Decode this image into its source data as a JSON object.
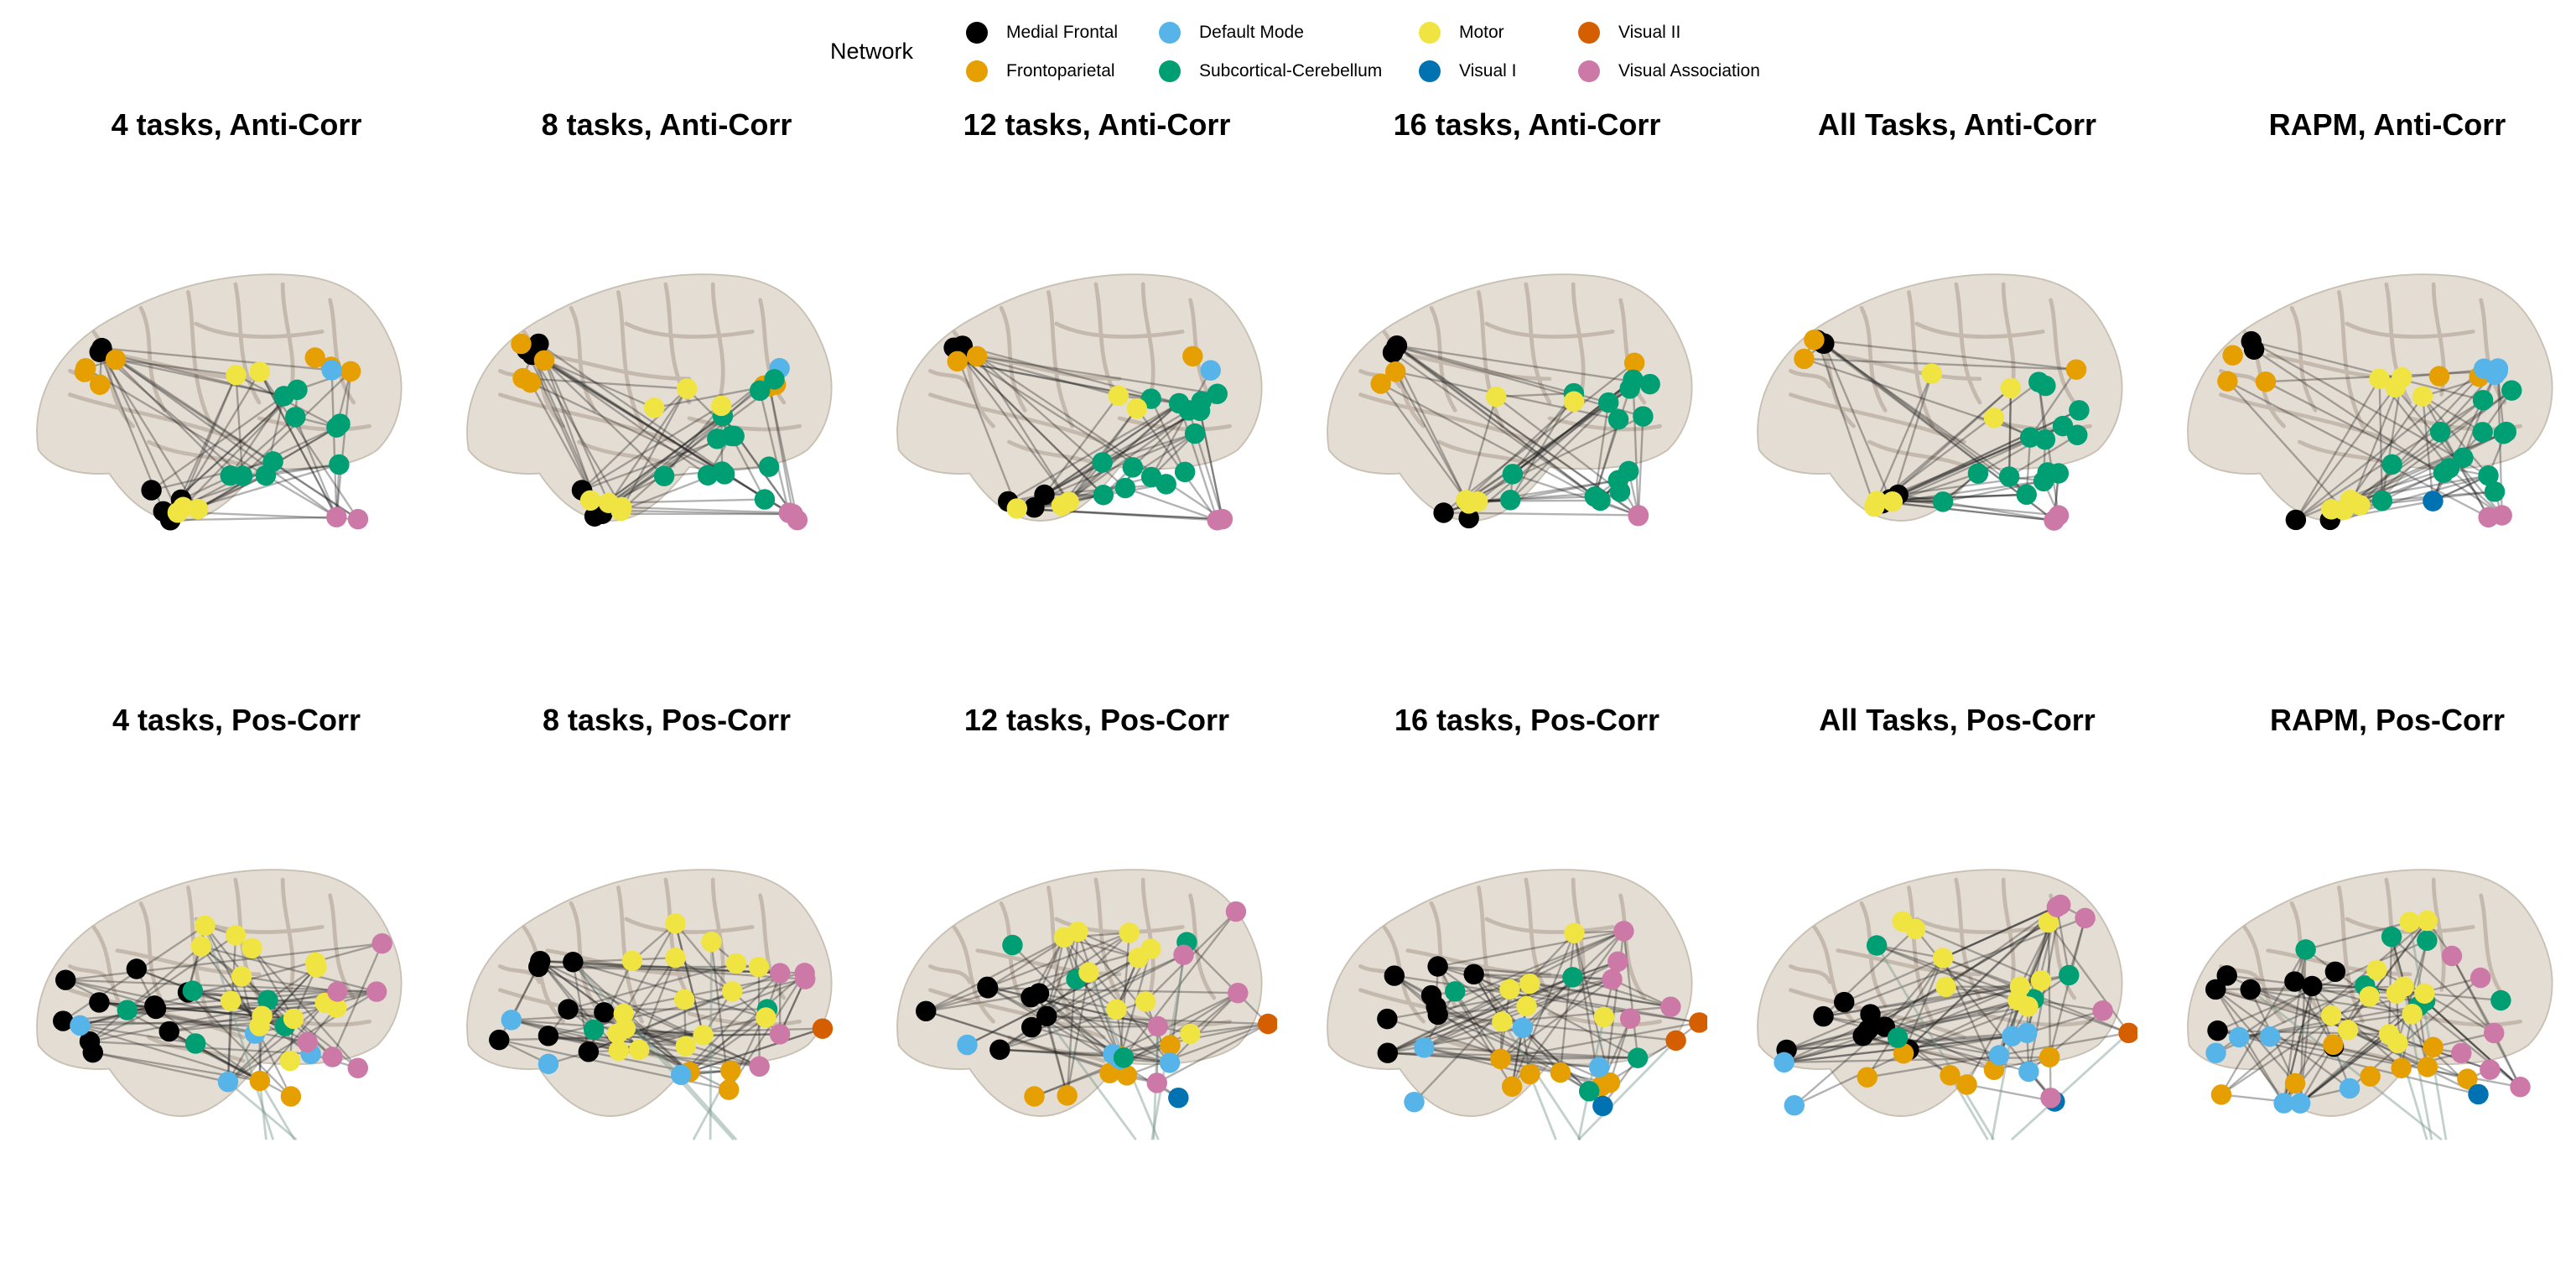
{
  "legend": {
    "title": "Network",
    "items": [
      {
        "label": "Medial Frontal",
        "color": "#000000"
      },
      {
        "label": "Frontoparietal",
        "color": "#E69F00"
      },
      {
        "label": "Default Mode",
        "color": "#56B4E9"
      },
      {
        "label": "Subcortical-Cerebellum",
        "color": "#009E73"
      },
      {
        "label": "Motor",
        "color": "#F0E442"
      },
      {
        "label": "Visual I",
        "color": "#0072B2"
      },
      {
        "label": "Visual II",
        "color": "#D55E00"
      },
      {
        "label": "Visual Association",
        "color": "#CC79A7"
      }
    ]
  },
  "panels": [
    {
      "title": "4 tasks, Anti-Corr"
    },
    {
      "title": "8 tasks, Anti-Corr"
    },
    {
      "title": "12 tasks, Anti-Corr"
    },
    {
      "title": "16 tasks, Anti-Corr"
    },
    {
      "title": "All Tasks, Anti-Corr"
    },
    {
      "title": "RAPM, Anti-Corr"
    },
    {
      "title": "4 tasks, Pos-Corr"
    },
    {
      "title": "8 tasks, Pos-Corr"
    },
    {
      "title": "12 tasks, Pos-Corr"
    },
    {
      "title": "16 tasks, Pos-Corr"
    },
    {
      "title": "All Tasks, Pos-Corr"
    },
    {
      "title": "RAPM, Pos-Corr"
    }
  ]
}
